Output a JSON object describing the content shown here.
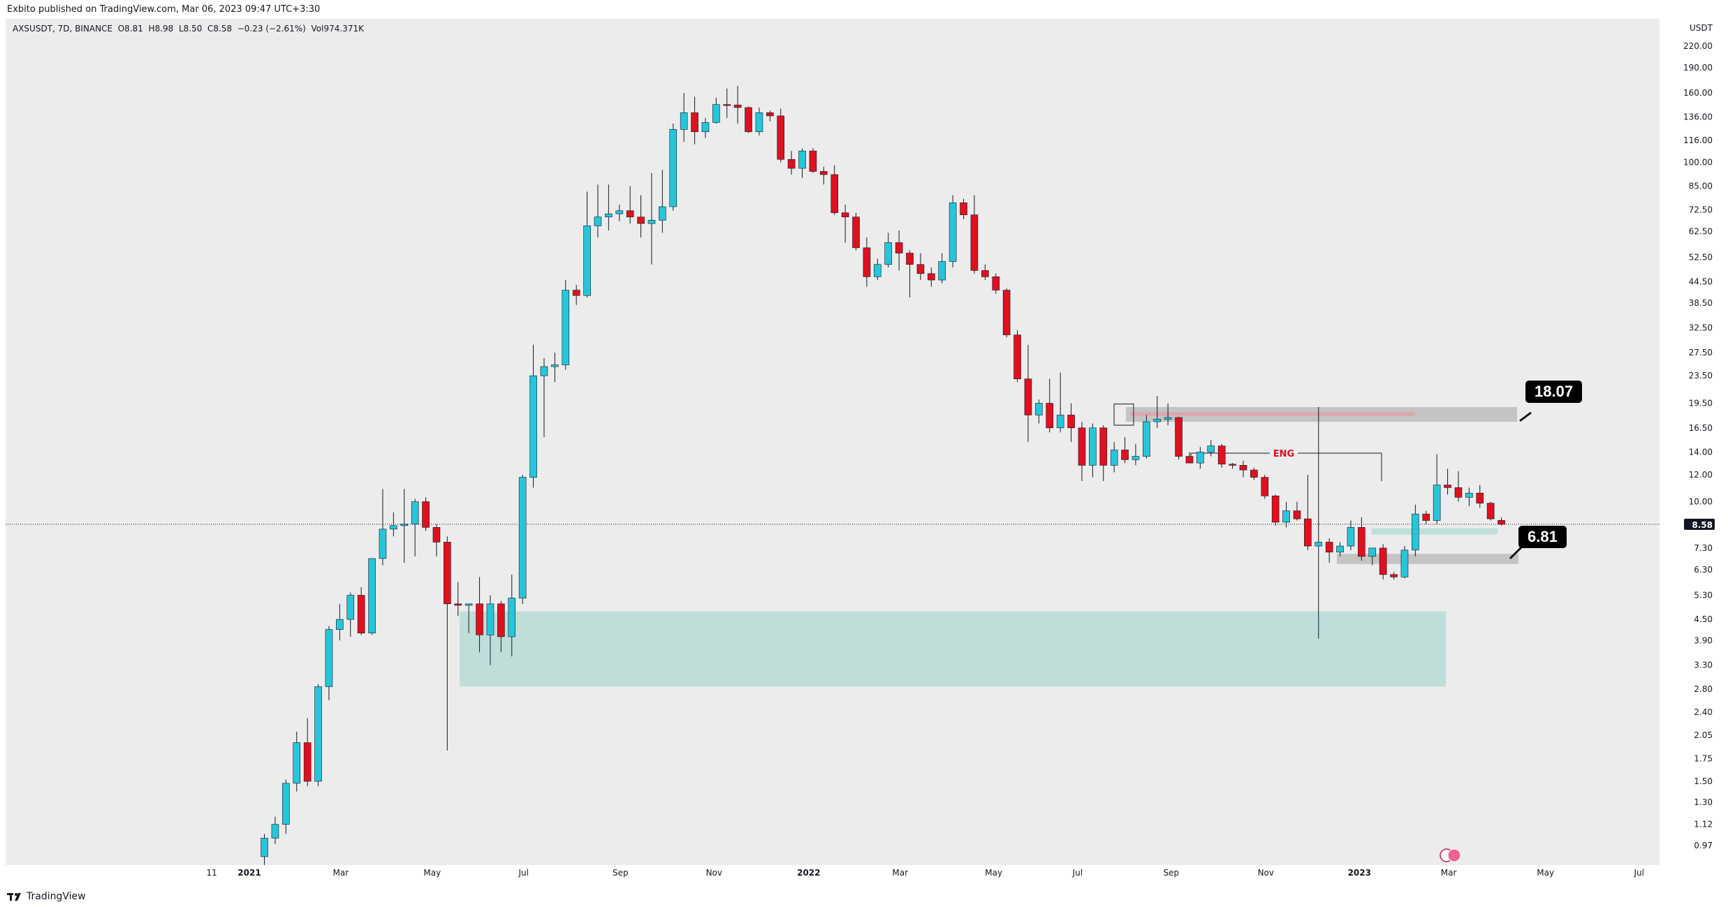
{
  "header": {
    "publish_line": "Exbito published on TradingView.com, Mar 06, 2023 09:47 UTC+3:30"
  },
  "legend": {
    "symbol": "AXSUSDT",
    "interval": "7D",
    "exchange": "BINANCE",
    "open": "O8.81",
    "high": "H8.98",
    "low": "L8.50",
    "close": "C8.58",
    "change": "−0.23 (−2.61%)",
    "volume": "Vol974.371K"
  },
  "footer": {
    "brand": "TradingView"
  },
  "colors": {
    "up": "#26c6da",
    "down": "#e0101e",
    "background": "#ececec",
    "zone_teal": "#b9dcd6",
    "zone_gray": "#bdbdbd",
    "zone_red": "#e0a3a8",
    "eng_label": "#e0101e"
  },
  "chart_data": {
    "type": "candlestick",
    "scale": "log",
    "currency": "USDT",
    "interval": "7D",
    "last_price": 8.58,
    "y_ticks": [
      "220.00",
      "190.00",
      "160.00",
      "136.00",
      "116.00",
      "100.00",
      "85.00",
      "72.50",
      "62.50",
      "52.50",
      "44.50",
      "38.50",
      "32.50",
      "27.50",
      "23.50",
      "19.50",
      "16.50",
      "14.00",
      "12.00",
      "10.00",
      "8.58",
      "7.30",
      "6.30",
      "5.30",
      "4.50",
      "3.90",
      "3.30",
      "2.80",
      "2.40",
      "2.05",
      "1.75",
      "1.50",
      "1.30",
      "1.12",
      "0.97"
    ],
    "x_ticks": [
      {
        "label": "11",
        "w": -3.5
      },
      {
        "label": "2021",
        "w": 0,
        "bold": true
      },
      {
        "label": "Mar",
        "w": 8.5
      },
      {
        "label": "May",
        "w": 17
      },
      {
        "label": "Jul",
        "w": 25.5
      },
      {
        "label": "Sep",
        "w": 34.5
      },
      {
        "label": "Nov",
        "w": 43.2
      },
      {
        "label": "2022",
        "w": 52,
        "bold": true
      },
      {
        "label": "Mar",
        "w": 60.5
      },
      {
        "label": "May",
        "w": 69.2
      },
      {
        "label": "Jul",
        "w": 77
      },
      {
        "label": "Sep",
        "w": 85.7
      },
      {
        "label": "Nov",
        "w": 94.5
      },
      {
        "label": "2023",
        "w": 103.2,
        "bold": true
      },
      {
        "label": "Mar",
        "w": 111.5
      },
      {
        "label": "May",
        "w": 120.5
      },
      {
        "label": "Jul",
        "w": 129.2
      }
    ],
    "candles_ohlc": [
      [
        0.9,
        1.05,
        0.85,
        1.02
      ],
      [
        1.02,
        1.18,
        0.98,
        1.12
      ],
      [
        1.12,
        1.52,
        1.05,
        1.48
      ],
      [
        1.48,
        2.1,
        1.4,
        1.95
      ],
      [
        1.95,
        2.3,
        1.45,
        1.5
      ],
      [
        1.5,
        2.9,
        1.45,
        2.85
      ],
      [
        2.85,
        4.3,
        2.6,
        4.2
      ],
      [
        4.2,
        5.0,
        3.9,
        4.5
      ],
      [
        4.5,
        5.4,
        4.0,
        5.3
      ],
      [
        5.3,
        5.6,
        4.05,
        4.1
      ],
      [
        4.1,
        6.8,
        4.05,
        6.8
      ],
      [
        6.8,
        10.9,
        6.5,
        8.3
      ],
      [
        8.3,
        9.3,
        7.9,
        8.5
      ],
      [
        8.5,
        10.9,
        6.6,
        8.6
      ],
      [
        8.6,
        10.2,
        6.9,
        10.0
      ],
      [
        10.0,
        10.3,
        8.2,
        8.4
      ],
      [
        8.4,
        8.6,
        6.9,
        7.6
      ],
      [
        7.6,
        7.9,
        1.85,
        5.0
      ],
      [
        5.0,
        5.8,
        4.6,
        4.95
      ],
      [
        4.95,
        5.0,
        4.1,
        5.0
      ],
      [
        5.0,
        6.0,
        3.6,
        4.05
      ],
      [
        4.05,
        5.3,
        3.3,
        5.0
      ],
      [
        5.0,
        5.1,
        3.6,
        4.0
      ],
      [
        4.0,
        6.1,
        3.5,
        5.2
      ],
      [
        5.2,
        12.0,
        5.0,
        11.8
      ],
      [
        11.8,
        29.0,
        11.0,
        23.5
      ],
      [
        23.5,
        26.5,
        15.5,
        25.0
      ],
      [
        25.0,
        27.5,
        22.5,
        25.3
      ],
      [
        25.3,
        45.0,
        24.5,
        42.0
      ],
      [
        42.0,
        43.5,
        38.0,
        40.5
      ],
      [
        40.5,
        82.0,
        40.0,
        65.0
      ],
      [
        65.0,
        86.0,
        60.0,
        69.0
      ],
      [
        69.0,
        86.0,
        63.0,
        70.5
      ],
      [
        70.5,
        75.0,
        67.0,
        72.0
      ],
      [
        72.0,
        85.0,
        66.0,
        69.0
      ],
      [
        69.0,
        80.0,
        60.0,
        66.0
      ],
      [
        66.0,
        93.0,
        50.0,
        67.5
      ],
      [
        67.5,
        95.0,
        62.0,
        74.0
      ],
      [
        74.0,
        130.0,
        72.0,
        125.0
      ],
      [
        125.0,
        160.0,
        115.0,
        140.0
      ],
      [
        140.0,
        156.0,
        113.0,
        123.0
      ],
      [
        123.0,
        135.0,
        118.0,
        131.0
      ],
      [
        131.0,
        155.0,
        130.0,
        148.0
      ],
      [
        148.0,
        165.0,
        135.0,
        147.5
      ],
      [
        147.5,
        168.0,
        130.0,
        145.0
      ],
      [
        145.0,
        146.0,
        122.0,
        123.0
      ],
      [
        123.0,
        145.0,
        120.0,
        140.0
      ],
      [
        140.0,
        142.0,
        132.0,
        137.0
      ],
      [
        137.0,
        144.0,
        100.0,
        102.0
      ],
      [
        102.0,
        108.0,
        92.0,
        96.0
      ],
      [
        96.0,
        110.0,
        90.0,
        108.0
      ],
      [
        108.0,
        110.0,
        93.0,
        94.0
      ],
      [
        94.0,
        97.0,
        86.0,
        92.0
      ],
      [
        92.0,
        98.0,
        70.0,
        71.0
      ],
      [
        71.0,
        75.0,
        58.0,
        69.0
      ],
      [
        69.0,
        71.0,
        55.0,
        56.0
      ],
      [
        56.0,
        60.0,
        43.0,
        46.0
      ],
      [
        46.0,
        52.0,
        45.0,
        50.0
      ],
      [
        50.0,
        62.0,
        49.0,
        58.0
      ],
      [
        58.0,
        63.0,
        48.0,
        54.0
      ],
      [
        54.0,
        55.0,
        40.0,
        50.0
      ],
      [
        50.0,
        54.0,
        45.0,
        47.0
      ],
      [
        47.0,
        49.0,
        43.0,
        45.0
      ],
      [
        45.0,
        54.0,
        44.0,
        51.0
      ],
      [
        51.0,
        80.0,
        49.0,
        76.0
      ],
      [
        76.0,
        78.0,
        68.0,
        70.0
      ],
      [
        70.0,
        80.0,
        47.0,
        48.0
      ],
      [
        48.0,
        50.0,
        45.0,
        46.0
      ],
      [
        46.0,
        47.0,
        41.0,
        42.0
      ],
      [
        42.0,
        42.5,
        30.5,
        31.0
      ],
      [
        31.0,
        32.0,
        22.5,
        23.0
      ],
      [
        23.0,
        29.0,
        15.0,
        18.0
      ],
      [
        18.0,
        20.0,
        17.0,
        19.5
      ],
      [
        19.5,
        23.0,
        16.0,
        16.5
      ],
      [
        16.5,
        24.0,
        16.0,
        18.0
      ],
      [
        18.0,
        19.5,
        15.0,
        16.5
      ],
      [
        16.5,
        17.2,
        11.5,
        12.8
      ],
      [
        12.8,
        17.0,
        11.8,
        16.5
      ],
      [
        16.5,
        16.8,
        11.5,
        12.8
      ],
      [
        12.8,
        15.0,
        12.2,
        14.2
      ],
      [
        14.2,
        15.5,
        13.0,
        13.3
      ],
      [
        13.3,
        14.8,
        12.8,
        13.6
      ],
      [
        13.6,
        18.0,
        13.4,
        17.2
      ],
      [
        17.2,
        20.5,
        16.5,
        17.5
      ],
      [
        17.5,
        19.5,
        16.8,
        17.7
      ],
      [
        17.7,
        17.8,
        13.3,
        13.6
      ],
      [
        13.6,
        14.0,
        13.0,
        13.0
      ],
      [
        13.0,
        14.5,
        12.5,
        14.0
      ],
      [
        14.0,
        15.2,
        13.6,
        14.6
      ],
      [
        14.6,
        14.8,
        12.6,
        12.9
      ],
      [
        12.9,
        13.0,
        12.5,
        12.8
      ],
      [
        12.8,
        13.2,
        11.8,
        12.4
      ],
      [
        12.4,
        12.6,
        11.6,
        11.8
      ],
      [
        11.8,
        12.0,
        10.2,
        10.4
      ],
      [
        10.4,
        10.5,
        8.5,
        8.7
      ],
      [
        8.7,
        10.0,
        8.4,
        9.4
      ],
      [
        9.4,
        10.0,
        8.8,
        8.9
      ],
      [
        8.9,
        12.0,
        7.2,
        7.4
      ],
      [
        7.4,
        19.0,
        3.95,
        7.6
      ],
      [
        7.6,
        7.8,
        6.6,
        7.1
      ],
      [
        7.1,
        7.6,
        6.9,
        7.4
      ],
      [
        7.4,
        8.8,
        7.2,
        8.4
      ],
      [
        8.4,
        9.0,
        6.7,
        6.9
      ],
      [
        6.9,
        7.3,
        6.5,
        7.3
      ],
      [
        7.3,
        7.5,
        5.9,
        6.1
      ],
      [
        6.1,
        6.2,
        5.9,
        6.0
      ],
      [
        6.0,
        7.4,
        5.95,
        7.2
      ],
      [
        7.2,
        9.8,
        6.9,
        9.2
      ],
      [
        9.2,
        9.4,
        8.6,
        8.8
      ],
      [
        8.8,
        13.8,
        8.6,
        11.2
      ],
      [
        11.2,
        12.5,
        10.5,
        11.0
      ],
      [
        11.0,
        12.3,
        10.0,
        10.3
      ],
      [
        10.3,
        11.0,
        9.7,
        10.6
      ],
      [
        10.6,
        11.2,
        9.6,
        9.9
      ],
      [
        9.9,
        10.0,
        8.8,
        8.9
      ],
      [
        8.81,
        8.98,
        8.5,
        8.58
      ]
    ],
    "annotations": {
      "eng_label": "ENG",
      "callout_upper": "18.07",
      "callout_lower": "6.81"
    }
  }
}
